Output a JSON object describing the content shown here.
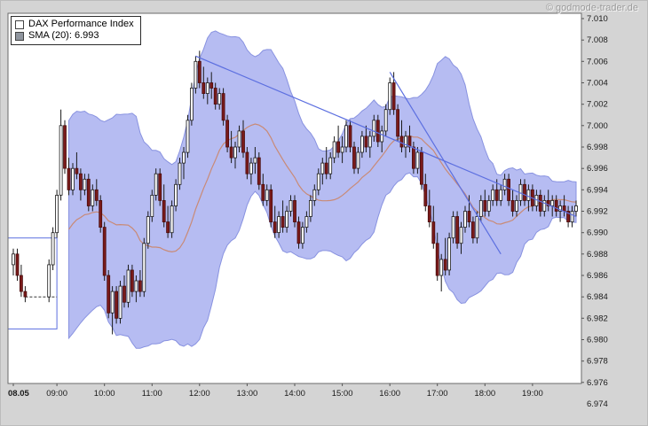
{
  "watermark": "© godmode-trader.de",
  "legend": {
    "series": [
      {
        "label": "DAX Performance Index",
        "swatch": "#ffffff"
      },
      {
        "label": "SMA (20): 6.993",
        "swatch": "#8f959e"
      }
    ]
  },
  "colors": {
    "background": "#d4d4d4",
    "plot_bg": "#ffffff",
    "band": "#a9b0f0",
    "band_edge": "#8892e0",
    "sma": "#c98a76",
    "up": "#ffffff",
    "down": "#7a1a1a",
    "down_border": "#4a0d0d",
    "wick": "#1a1a1a",
    "trendline": "#5c6fe0",
    "frame": "#6a6a6a",
    "axis_text": "#1a1a1a"
  },
  "chart_data": {
    "type": "candlestick",
    "title": "DAX Performance Index",
    "interval_minutes": 5,
    "ylim": [
      6.974,
      7.01
    ],
    "y_ticks": [
      6.974,
      6.976,
      6.978,
      6.98,
      6.982,
      6.984,
      6.986,
      6.988,
      6.99,
      6.992,
      6.994,
      6.996,
      6.998,
      7.0,
      7.002,
      7.004,
      7.006,
      7.008,
      7.01
    ],
    "x_axis_labels": [
      {
        "label": "08.05",
        "time": "08:05",
        "bold": true
      },
      {
        "label": "09:00",
        "time": "09:00"
      },
      {
        "label": "10:00",
        "time": "10:00"
      },
      {
        "label": "11:00",
        "time": "11:00"
      },
      {
        "label": "12:00",
        "time": "12:00"
      },
      {
        "label": "13:00",
        "time": "13:00"
      },
      {
        "label": "14:00",
        "time": "14:00"
      },
      {
        "label": "15:00",
        "time": "15:00"
      },
      {
        "label": "16:00",
        "time": "16:00"
      },
      {
        "label": "17:00",
        "time": "17:00"
      },
      {
        "label": "18:00",
        "time": "18:00"
      },
      {
        "label": "19:00",
        "time": "19:00"
      }
    ],
    "indicators": {
      "sma": {
        "period": 20,
        "current_value": "6.993"
      },
      "bollinger": {
        "period": 20,
        "stddev": 2
      }
    },
    "annotations": {
      "trendlines": [
        {
          "t1": "11:55",
          "v1": 7.0065,
          "t2": "19:55",
          "v2": 6.9915
        },
        {
          "t1": "16:00",
          "v1": 7.005,
          "t2": "18:20",
          "v2": 6.988
        }
      ],
      "rect": {
        "t1": "08:05",
        "t2": "09:00",
        "v1": 6.981,
        "v2": 6.9895
      },
      "dashed_line": {
        "t1": "08:20",
        "t2": "09:00",
        "v": 6.984
      }
    },
    "candles": [
      [
        "08:05",
        6.987,
        6.9885,
        6.986,
        6.988
      ],
      [
        "08:10",
        6.988,
        6.9885,
        6.9855,
        6.986
      ],
      [
        "08:15",
        6.986,
        6.987,
        6.984,
        6.9845
      ],
      [
        "08:20",
        6.9845,
        6.985,
        6.9835,
        6.984
      ],
      [
        "08:25"
      ],
      [
        "08:30"
      ],
      [
        "08:35"
      ],
      [
        "08:40"
      ],
      [
        "08:45"
      ],
      [
        "08:50",
        6.984,
        6.9875,
        6.9835,
        6.987
      ],
      [
        "08:55",
        6.987,
        6.9905,
        6.9865,
        6.99
      ],
      [
        "09:00",
        6.99,
        6.994,
        6.9895,
        6.9935
      ],
      [
        "09:05",
        6.9935,
        7.0015,
        6.993,
        7.0
      ],
      [
        "09:10",
        7.0,
        7.0005,
        6.9955,
        6.996
      ],
      [
        "09:15",
        6.996,
        6.997,
        6.9935,
        6.994
      ],
      [
        "09:20",
        6.994,
        6.9965,
        6.9935,
        6.996
      ],
      [
        "09:25",
        6.996,
        6.9975,
        6.995,
        6.9955
      ],
      [
        "09:30",
        6.9955,
        6.996,
        6.993,
        6.994
      ],
      [
        "09:35",
        6.994,
        6.9955,
        6.9935,
        6.995
      ],
      [
        "09:40",
        6.995,
        6.9955,
        6.992,
        6.9925
      ],
      [
        "09:45",
        6.9925,
        6.9945,
        6.992,
        6.994
      ],
      [
        "09:50",
        6.994,
        6.995,
        6.9925,
        6.993
      ],
      [
        "09:55",
        6.993,
        6.9935,
        6.99,
        6.9905
      ],
      [
        "10:00",
        6.9905,
        6.991,
        6.9855,
        6.986
      ],
      [
        "10:05",
        6.986,
        6.9865,
        6.982,
        6.9825
      ],
      [
        "10:10",
        6.9825,
        6.985,
        6.9805,
        6.9845
      ],
      [
        "10:15",
        6.9845,
        6.985,
        6.9815,
        6.982
      ],
      [
        "10:20",
        6.982,
        6.9855,
        6.9815,
        6.985
      ],
      [
        "10:25",
        6.985,
        6.986,
        6.983,
        6.9835
      ],
      [
        "10:30",
        6.9835,
        6.987,
        6.983,
        6.9865
      ],
      [
        "10:35",
        6.9865,
        6.987,
        6.984,
        6.9845
      ],
      [
        "10:40",
        6.9845,
        6.986,
        6.9835,
        6.9855
      ],
      [
        "10:45",
        6.9855,
        6.9865,
        6.984,
        6.9845
      ],
      [
        "10:50",
        6.9845,
        6.9895,
        6.984,
        6.989
      ],
      [
        "10:55",
        6.989,
        6.992,
        6.9885,
        6.9915
      ],
      [
        "11:00",
        6.9915,
        6.994,
        6.991,
        6.9935
      ],
      [
        "11:05",
        6.9935,
        6.996,
        6.993,
        6.9955
      ],
      [
        "11:10",
        6.9955,
        6.996,
        6.9925,
        6.993
      ],
      [
        "11:15",
        6.993,
        6.9945,
        6.9905,
        6.991
      ],
      [
        "11:20",
        6.991,
        6.9925,
        6.9895,
        6.99
      ],
      [
        "11:25",
        6.99,
        6.993,
        6.9895,
        6.9925
      ],
      [
        "11:30",
        6.9925,
        6.995,
        6.992,
        6.9945
      ],
      [
        "11:35",
        6.9945,
        6.997,
        6.994,
        6.9965
      ],
      [
        "11:40",
        6.9965,
        6.998,
        6.995,
        6.9975
      ],
      [
        "11:45",
        6.9975,
        7.001,
        6.997,
        7.0005
      ],
      [
        "11:50",
        7.0005,
        7.004,
        7.0,
        7.0035
      ],
      [
        "11:55",
        7.0035,
        7.0065,
        7.003,
        7.006
      ],
      [
        "12:00",
        7.006,
        7.007,
        7.0035,
        7.004
      ],
      [
        "12:05",
        7.004,
        7.0055,
        7.0025,
        7.003
      ],
      [
        "12:10",
        7.003,
        7.0045,
        7.002,
        7.004
      ],
      [
        "12:15",
        7.004,
        7.005,
        7.0025,
        7.0035
      ],
      [
        "12:20",
        7.0035,
        7.004,
        7.0015,
        7.002
      ],
      [
        "12:25",
        7.002,
        7.0035,
        7.0015,
        7.003
      ],
      [
        "12:30",
        7.003,
        7.0035,
        7.0,
        7.0005
      ],
      [
        "12:35",
        7.0005,
        7.001,
        6.9975,
        6.998
      ],
      [
        "12:40",
        6.998,
        6.9995,
        6.9965,
        6.997
      ],
      [
        "12:45",
        6.997,
        6.9985,
        6.996,
        6.998
      ],
      [
        "12:50",
        6.998,
        7.0,
        6.9975,
        6.9995
      ],
      [
        "12:55",
        6.9995,
        7.0005,
        6.997,
        6.9975
      ],
      [
        "13:00",
        6.9975,
        6.998,
        6.995,
        6.9955
      ],
      [
        "13:05",
        6.9955,
        6.997,
        6.9945,
        6.9965
      ],
      [
        "13:10",
        6.9965,
        6.998,
        6.9955,
        6.997
      ],
      [
        "13:15",
        6.997,
        6.9975,
        6.994,
        6.9945
      ],
      [
        "13:20",
        6.9945,
        6.9955,
        6.9925,
        6.993
      ],
      [
        "13:25",
        6.993,
        6.9945,
        6.9925,
        6.994
      ],
      [
        "13:30",
        6.994,
        6.9945,
        6.9905,
        6.991
      ],
      [
        "13:35",
        6.991,
        6.9925,
        6.9895,
        6.99
      ],
      [
        "13:40",
        6.99,
        6.992,
        6.9895,
        6.9915
      ],
      [
        "13:45",
        6.9915,
        6.993,
        6.99,
        6.9905
      ],
      [
        "13:50",
        6.9905,
        6.9925,
        6.99,
        6.992
      ],
      [
        "13:55",
        6.992,
        6.9935,
        6.9915,
        6.993
      ],
      [
        "14:00",
        6.993,
        6.9935,
        6.9905,
        6.991
      ],
      [
        "14:05",
        6.991,
        6.9915,
        6.9885,
        6.989
      ],
      [
        "14:10",
        6.989,
        6.991,
        6.9885,
        6.9905
      ],
      [
        "14:15",
        6.9905,
        6.992,
        6.99,
        6.9915
      ],
      [
        "14:20",
        6.9915,
        6.9935,
        6.991,
        6.993
      ],
      [
        "14:25",
        6.993,
        6.9945,
        6.9925,
        6.994
      ],
      [
        "14:30",
        6.994,
        6.996,
        6.9935,
        6.9955
      ],
      [
        "14:35",
        6.9955,
        6.997,
        6.9945,
        6.9965
      ],
      [
        "14:40",
        6.9965,
        6.998,
        6.995,
        6.9955
      ],
      [
        "14:45",
        6.9955,
        6.9975,
        6.995,
        6.997
      ],
      [
        "14:50",
        6.997,
        6.999,
        6.9965,
        6.9985
      ],
      [
        "14:55",
        6.9985,
        7.0,
        6.997,
        6.9975
      ],
      [
        "15:00",
        6.9975,
        6.999,
        6.9965,
        6.998
      ],
      [
        "15:05",
        6.998,
        7.0005,
        6.9975,
        7.0
      ],
      [
        "15:10",
        7.0,
        7.0005,
        6.9975,
        6.998
      ],
      [
        "15:15",
        6.998,
        6.9985,
        6.9955,
        6.996
      ],
      [
        "15:20",
        6.996,
        6.998,
        6.9955,
        6.9975
      ],
      [
        "15:25",
        6.9975,
        6.9995,
        6.997,
        6.999
      ],
      [
        "15:30",
        6.999,
        7.0,
        6.9975,
        6.998
      ],
      [
        "15:35",
        6.998,
        6.9995,
        6.997,
        6.999
      ],
      [
        "15:40",
        6.999,
        7.001,
        6.9985,
        7.0005
      ],
      [
        "15:45",
        7.0005,
        7.001,
        6.998,
        6.9985
      ],
      [
        "15:50",
        6.9985,
        7.0,
        6.9975,
        6.9995
      ],
      [
        "15:55",
        6.9995,
        7.002,
        6.999,
        7.0015
      ],
      [
        "16:00",
        7.0015,
        7.0045,
        7.001,
        7.004
      ],
      [
        "16:05",
        7.004,
        7.005,
        7.001,
        7.0015
      ],
      [
        "16:10",
        7.0015,
        7.002,
        6.9985,
        6.999
      ],
      [
        "16:15",
        6.999,
        7.0005,
        6.9975,
        6.998
      ],
      [
        "16:20",
        6.998,
        6.9995,
        6.997,
        6.999
      ],
      [
        "16:25",
        6.999,
        7.0,
        6.9975,
        6.998
      ],
      [
        "16:30",
        6.998,
        6.9985,
        6.9955,
        6.996
      ],
      [
        "16:35",
        6.996,
        6.998,
        6.9955,
        6.9975
      ],
      [
        "16:40",
        6.9975,
        6.998,
        6.994,
        6.9945
      ],
      [
        "16:45",
        6.9945,
        6.9955,
        6.992,
        6.9925
      ],
      [
        "16:50",
        6.9925,
        6.994,
        6.9905,
        6.991
      ],
      [
        "16:55",
        6.991,
        6.9925,
        6.9885,
        6.989
      ],
      [
        "17:00",
        6.989,
        6.99,
        6.9855,
        6.986
      ],
      [
        "17:05",
        6.986,
        6.988,
        6.9845,
        6.9875
      ],
      [
        "17:10",
        6.9875,
        6.9895,
        6.986,
        6.9865
      ],
      [
        "17:15",
        6.9865,
        6.99,
        6.986,
        6.9895
      ],
      [
        "17:20",
        6.9895,
        6.992,
        6.989,
        6.9915
      ],
      [
        "17:25",
        6.9915,
        6.992,
        6.9885,
        6.989
      ],
      [
        "17:30",
        6.989,
        6.991,
        6.988,
        6.9905
      ],
      [
        "17:35",
        6.9905,
        6.9925,
        6.99,
        6.992
      ],
      [
        "17:40",
        6.992,
        6.9935,
        6.9905,
        6.991
      ],
      [
        "17:45",
        6.991,
        6.9915,
        6.989,
        6.9895
      ],
      [
        "17:50",
        6.9895,
        6.992,
        6.989,
        6.9915
      ],
      [
        "17:55",
        6.9915,
        6.9935,
        6.991,
        6.993
      ],
      [
        "18:00",
        6.993,
        6.994,
        6.9915,
        6.992
      ],
      [
        "18:05",
        6.992,
        6.9935,
        6.9915,
        6.993
      ],
      [
        "18:10",
        6.993,
        6.9945,
        6.9925,
        6.994
      ],
      [
        "18:15",
        6.994,
        6.995,
        6.9925,
        6.993
      ],
      [
        "18:20",
        6.993,
        6.9945,
        6.9925,
        6.994
      ],
      [
        "18:25",
        6.994,
        6.9955,
        6.9935,
        6.995
      ],
      [
        "18:30",
        6.995,
        6.9955,
        6.9925,
        6.993
      ],
      [
        "18:35",
        6.993,
        6.994,
        6.9915,
        6.992
      ],
      [
        "18:40",
        6.992,
        6.9935,
        6.9915,
        6.993
      ],
      [
        "18:45",
        6.993,
        6.995,
        6.9925,
        6.9945
      ],
      [
        "18:50",
        6.9945,
        6.995,
        6.9925,
        6.993
      ],
      [
        "18:55",
        6.993,
        6.9945,
        6.992,
        6.994
      ],
      [
        "19:00",
        6.994,
        6.9945,
        6.992,
        6.9925
      ],
      [
        "19:05",
        6.9925,
        6.994,
        6.992,
        6.9935
      ],
      [
        "19:10",
        6.9935,
        6.994,
        6.9915,
        6.992
      ],
      [
        "19:15",
        6.992,
        6.9935,
        6.9915,
        6.993
      ],
      [
        "19:20",
        6.993,
        6.994,
        6.992,
        6.9925
      ],
      [
        "19:25",
        6.9925,
        6.9935,
        6.9915,
        6.993
      ],
      [
        "19:30",
        6.993,
        6.9935,
        6.9915,
        6.992
      ],
      [
        "19:35",
        6.992,
        6.993,
        6.991,
        6.9925
      ],
      [
        "19:40",
        6.9925,
        6.9935,
        6.9915,
        6.992
      ],
      [
        "19:45",
        6.992,
        6.9925,
        6.9905,
        6.991
      ],
      [
        "19:50",
        6.991,
        6.9925,
        6.9905,
        6.992
      ],
      [
        "19:55",
        6.992,
        6.993,
        6.9915,
        6.9925
      ]
    ]
  }
}
